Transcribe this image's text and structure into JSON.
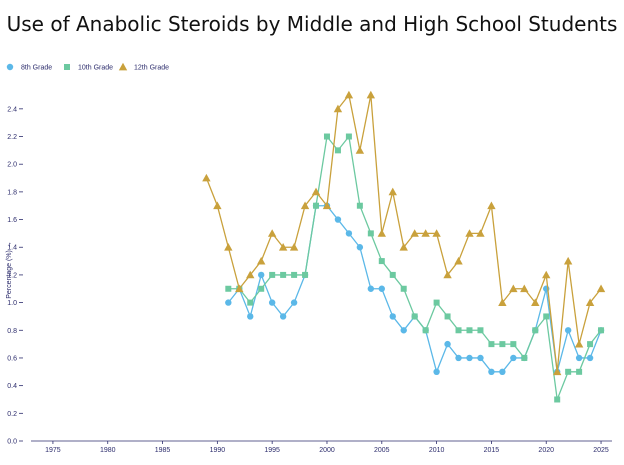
{
  "chart_data": {
    "type": "line",
    "title": "Use of Anabolic Steroids by Middle and High School Students",
    "xlabel": "",
    "ylabel": "Percentage (%) →",
    "xlim": [
      1973,
      2026
    ],
    "ylim": [
      0,
      2.5
    ],
    "xticks": [
      1975,
      1980,
      1985,
      1990,
      1995,
      2000,
      2005,
      2010,
      2015,
      2020,
      2025
    ],
    "yticks": [
      0.0,
      0.2,
      0.4,
      0.6,
      0.8,
      1.0,
      1.2,
      1.4,
      1.6,
      1.8,
      2.0,
      2.2,
      2.4
    ],
    "ytick_labels": [
      "0.0",
      "0.2",
      "0.4",
      "0.6",
      "0.8",
      "1.0",
      "1.2",
      "1.4",
      "1.6",
      "1.8",
      "2.0",
      "2.2",
      "2.4"
    ],
    "legend_position": "top-left",
    "series": [
      {
        "name": "8th Grade",
        "marker": "circle",
        "color": "#5bb8e8",
        "x": [
          1991,
          1992,
          1993,
          1994,
          1995,
          1996,
          1997,
          1998,
          1999,
          2000,
          2001,
          2002,
          2003,
          2004,
          2005,
          2006,
          2007,
          2008,
          2009,
          2010,
          2011,
          2012,
          2013,
          2014,
          2015,
          2016,
          2017,
          2018,
          2019,
          2020,
          2021,
          2022,
          2023,
          2024,
          2025
        ],
        "values": [
          1.0,
          1.1,
          0.9,
          1.2,
          1.0,
          0.9,
          1.0,
          1.2,
          1.7,
          1.7,
          1.6,
          1.5,
          1.4,
          1.1,
          1.1,
          0.9,
          0.8,
          0.9,
          0.8,
          0.5,
          0.7,
          0.6,
          0.6,
          0.6,
          0.5,
          0.5,
          0.6,
          0.6,
          0.8,
          1.1,
          0.5,
          0.8,
          0.6,
          0.6,
          0.8
        ]
      },
      {
        "name": "10th Grade",
        "marker": "square",
        "color": "#6cc9a0",
        "x": [
          1991,
          1992,
          1993,
          1994,
          1995,
          1996,
          1997,
          1998,
          1999,
          2000,
          2001,
          2002,
          2003,
          2004,
          2005,
          2006,
          2007,
          2008,
          2009,
          2010,
          2011,
          2012,
          2013,
          2014,
          2015,
          2016,
          2017,
          2018,
          2019,
          2020,
          2021,
          2022,
          2023,
          2024,
          2025
        ],
        "values": [
          1.1,
          1.1,
          1.0,
          1.1,
          1.2,
          1.2,
          1.2,
          1.2,
          1.7,
          2.2,
          2.1,
          2.2,
          1.7,
          1.5,
          1.3,
          1.2,
          1.1,
          0.9,
          0.8,
          1.0,
          0.9,
          0.8,
          0.8,
          0.8,
          0.7,
          0.7,
          0.7,
          0.6,
          0.8,
          0.9,
          0.3,
          0.5,
          0.5,
          0.7,
          0.8
        ]
      },
      {
        "name": "12th Grade",
        "marker": "triangle",
        "color": "#c9a13c",
        "x": [
          1989,
          1990,
          1991,
          1992,
          1993,
          1994,
          1995,
          1996,
          1997,
          1998,
          1999,
          2000,
          2001,
          2002,
          2003,
          2004,
          2005,
          2006,
          2007,
          2008,
          2009,
          2010,
          2011,
          2012,
          2013,
          2014,
          2015,
          2016,
          2017,
          2018,
          2019,
          2020,
          2021,
          2022,
          2023,
          2024,
          2025
        ],
        "values": [
          1.9,
          1.7,
          1.4,
          1.1,
          1.2,
          1.3,
          1.5,
          1.4,
          1.4,
          1.7,
          1.8,
          1.7,
          2.4,
          2.5,
          2.1,
          2.5,
          1.5,
          1.8,
          1.4,
          1.5,
          1.5,
          1.5,
          1.2,
          1.3,
          1.5,
          1.5,
          1.7,
          1.0,
          1.1,
          1.1,
          1.0,
          1.2,
          0.5,
          1.3,
          0.7,
          1.0,
          1.1
        ]
      }
    ]
  }
}
